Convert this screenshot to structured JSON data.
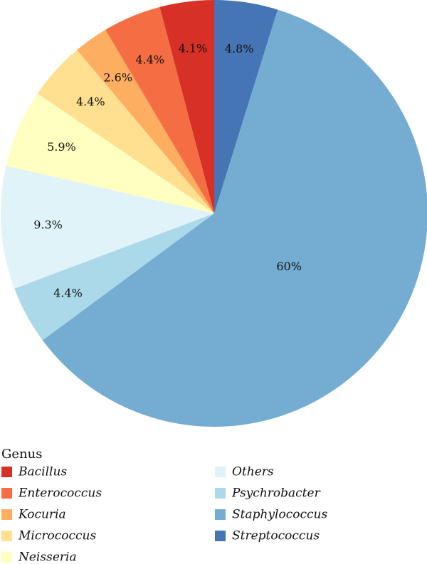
{
  "chart_data": {
    "type": "pie",
    "legend_title": "Genus",
    "legend_position": "bottom",
    "direction": "clockwise from top",
    "slices": [
      {
        "name": "Streptococcus",
        "value": 4.8,
        "label": "4.8%",
        "color": "#4575b4"
      },
      {
        "name": "Staphylococcus",
        "value": 60,
        "label": "60%",
        "color": "#74add1"
      },
      {
        "name": "Psychrobacter",
        "value": 4.4,
        "label": "4.4%",
        "color": "#abd9e9"
      },
      {
        "name": "Others",
        "value": 9.3,
        "label": "9.3%",
        "color": "#e0f3f8"
      },
      {
        "name": "Neisseria",
        "value": 5.9,
        "label": "5.9%",
        "color": "#ffffbf"
      },
      {
        "name": "Micrococcus",
        "value": 4.4,
        "label": "4.4%",
        "color": "#fee090"
      },
      {
        "name": "Kocuria",
        "value": 2.6,
        "label": "2.6%",
        "color": "#fdae61"
      },
      {
        "name": "Enterococcus",
        "value": 4.4,
        "label": "4.4%",
        "color": "#f46d43"
      },
      {
        "name": "Bacillus",
        "value": 4.1,
        "label": "4.1%",
        "color": "#d73027"
      }
    ],
    "legend_items": [
      {
        "name": "Bacillus",
        "color": "#d73027"
      },
      {
        "name": "Enterococcus",
        "color": "#f46d43"
      },
      {
        "name": "Kocuria",
        "color": "#fdae61"
      },
      {
        "name": "Micrococcus",
        "color": "#fee090"
      },
      {
        "name": "Neisseria",
        "color": "#ffffbf"
      },
      {
        "name": "Others",
        "color": "#e0f3f8"
      },
      {
        "name": "Psychrobacter",
        "color": "#abd9e9"
      },
      {
        "name": "Staphylococcus",
        "color": "#74add1"
      },
      {
        "name": "Streptococcus",
        "color": "#4575b4"
      }
    ]
  }
}
